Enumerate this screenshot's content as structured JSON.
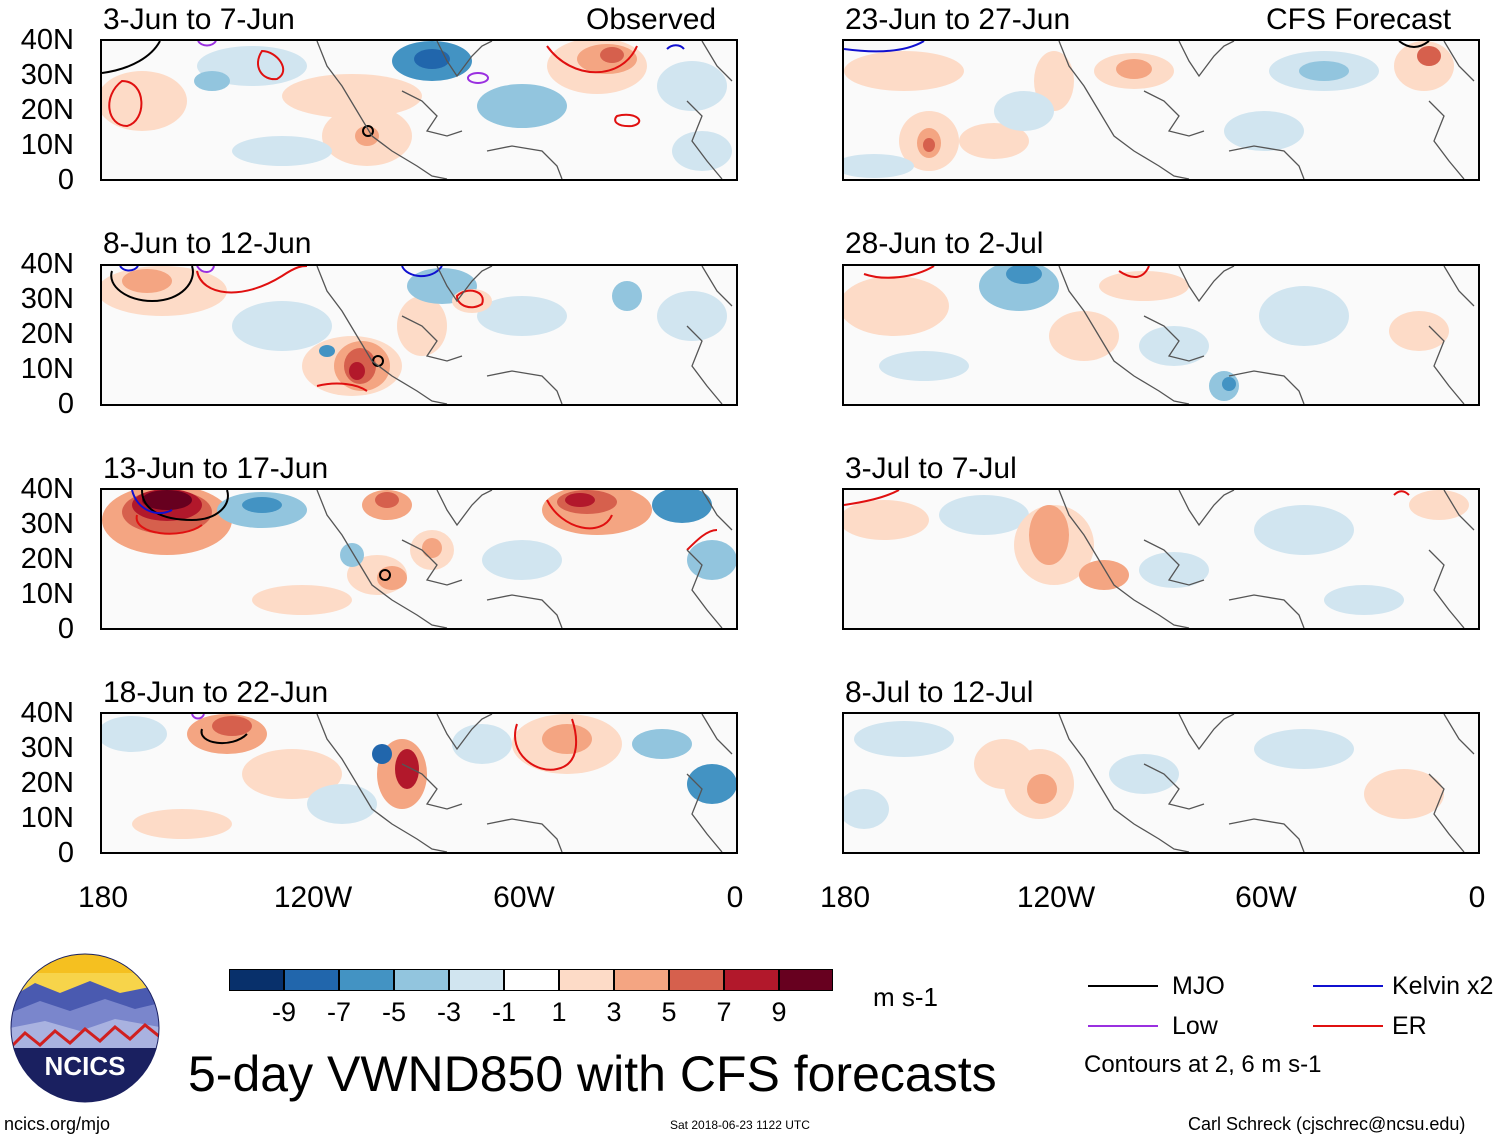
{
  "panels": [
    {
      "title": "3-Jun to 7-Jun",
      "label": "Observed"
    },
    {
      "title": "23-Jun to 27-Jun",
      "label": "CFS Forecast"
    },
    {
      "title": "8-Jun to 12-Jun",
      "label": ""
    },
    {
      "title": "28-Jun to 2-Jul",
      "label": ""
    },
    {
      "title": "13-Jun to 17-Jun",
      "label": ""
    },
    {
      "title": "3-Jul to 7-Jul",
      "label": ""
    },
    {
      "title": "18-Jun to 22-Jun",
      "label": ""
    },
    {
      "title": "8-Jul to 12-Jul",
      "label": ""
    }
  ],
  "y_ticks": [
    "40N",
    "30N",
    "20N",
    "10N",
    "0"
  ],
  "x_ticks": [
    "180",
    "120W",
    "60W",
    "0"
  ],
  "colorbar": {
    "labels": [
      "-9",
      "-7",
      "-5",
      "-3",
      "-1",
      "1",
      "3",
      "5",
      "7",
      "9"
    ],
    "colors": [
      "#08306b",
      "#2166ac",
      "#4393c3",
      "#92c5de",
      "#d1e5f0",
      "#ffffff",
      "#fddbc7",
      "#f4a582",
      "#d6604d",
      "#b2182b",
      "#67001f"
    ],
    "units": "m s-1"
  },
  "legend": {
    "mjo": {
      "label": "MJO",
      "color": "#000000"
    },
    "kelvin": {
      "label": "Kelvin x2",
      "color": "#1010d0"
    },
    "low": {
      "label": "Low",
      "color": "#9a30e0"
    },
    "er": {
      "label": "ER",
      "color": "#e01010"
    },
    "contours_note": "Contours at 2, 6 m s-1"
  },
  "title": "5-day VWND850 with CFS forecasts",
  "logo_text": "NCICS",
  "footer": {
    "url": "ncics.org/mjo",
    "timestamp": "Sat 2018-06-23 1122 UTC",
    "credit": "Carl Schreck (cjschrec@ncsu.edu)"
  }
}
